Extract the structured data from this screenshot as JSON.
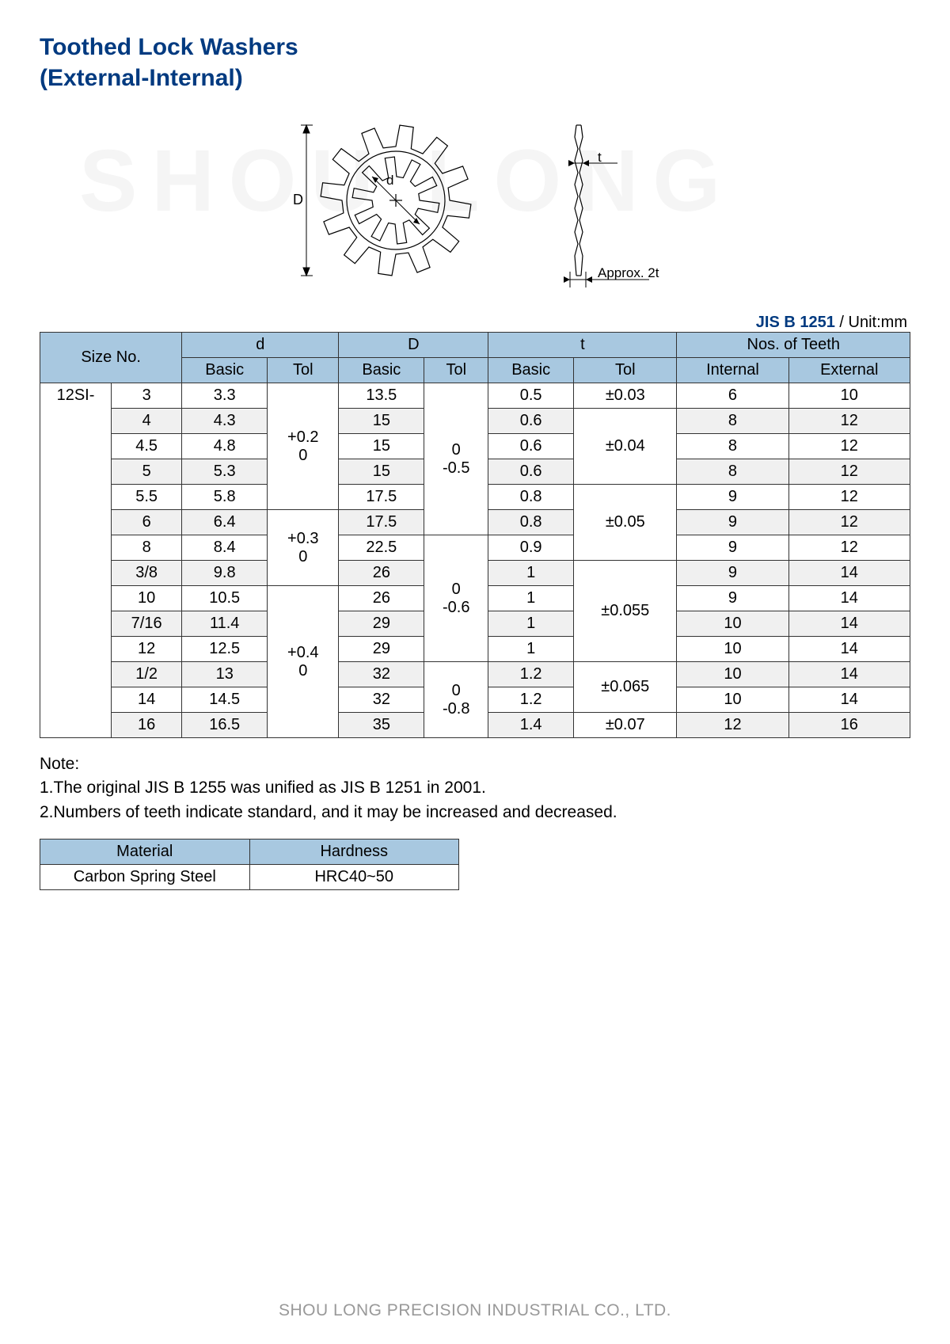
{
  "title_line1": "Toothed Lock Washers",
  "title_line2": "(External-Internal)",
  "watermark": "SHOU LONG",
  "diagram": {
    "label_D": "D",
    "label_d": "d",
    "label_t": "t",
    "label_approx": "Approx. 2t"
  },
  "standard": {
    "code": "JIS B 1251",
    "unit": " / Unit:mm"
  },
  "headers": {
    "size_no": "Size No.",
    "d": "d",
    "D": "D",
    "t": "t",
    "teeth": "Nos. of Teeth",
    "basic": "Basic",
    "tol": "Tol",
    "internal": "Internal",
    "external": "External"
  },
  "prefix": "12SI-",
  "rows": [
    {
      "size": "3",
      "d": "3.3",
      "D": "13.5",
      "t": "0.5",
      "ti": "6",
      "te": "10",
      "alt": false
    },
    {
      "size": "4",
      "d": "4.3",
      "D": "15",
      "t": "0.6",
      "ti": "8",
      "te": "12",
      "alt": true
    },
    {
      "size": "4.5",
      "d": "4.8",
      "D": "15",
      "t": "0.6",
      "ti": "8",
      "te": "12",
      "alt": false
    },
    {
      "size": "5",
      "d": "5.3",
      "D": "15",
      "t": "0.6",
      "ti": "8",
      "te": "12",
      "alt": true
    },
    {
      "size": "5.5",
      "d": "5.8",
      "D": "17.5",
      "t": "0.8",
      "ti": "9",
      "te": "12",
      "alt": false
    },
    {
      "size": "6",
      "d": "6.4",
      "D": "17.5",
      "t": "0.8",
      "ti": "9",
      "te": "12",
      "alt": true
    },
    {
      "size": "8",
      "d": "8.4",
      "D": "22.5",
      "t": "0.9",
      "ti": "9",
      "te": "12",
      "alt": false
    },
    {
      "size": "3/8",
      "d": "9.8",
      "D": "26",
      "t": "1",
      "ti": "9",
      "te": "14",
      "alt": true
    },
    {
      "size": "10",
      "d": "10.5",
      "D": "26",
      "t": "1",
      "ti": "9",
      "te": "14",
      "alt": false
    },
    {
      "size": "7/16",
      "d": "11.4",
      "D": "29",
      "t": "1",
      "ti": "10",
      "te": "14",
      "alt": true
    },
    {
      "size": "12",
      "d": "12.5",
      "D": "29",
      "t": "1",
      "ti": "10",
      "te": "14",
      "alt": false
    },
    {
      "size": "1/2",
      "d": "13",
      "D": "32",
      "t": "1.2",
      "ti": "10",
      "te": "14",
      "alt": true
    },
    {
      "size": "14",
      "d": "14.5",
      "D": "32",
      "t": "1.2",
      "ti": "10",
      "te": "14",
      "alt": false
    },
    {
      "size": "16",
      "d": "16.5",
      "D": "35",
      "t": "1.4",
      "ti": "12",
      "te": "16",
      "alt": true
    }
  ],
  "d_tol": [
    {
      "val1": "+0.2",
      "val2": "0",
      "span": 5
    },
    {
      "val1": "+0.3",
      "val2": "0",
      "span": 3
    },
    {
      "val1": "+0.4",
      "val2": "0",
      "span": 6
    }
  ],
  "D_tol": [
    {
      "val1": "0",
      "val2": "-0.5",
      "span": 6
    },
    {
      "val1": "0",
      "val2": "-0.6",
      "span": 5
    },
    {
      "val1": "0",
      "val2": "-0.8",
      "span": 3
    }
  ],
  "t_tol": [
    {
      "val": "±0.03",
      "span": 1
    },
    {
      "val": "±0.04",
      "span": 3
    },
    {
      "val": "±0.05",
      "span": 3
    },
    {
      "val": "±0.055",
      "span": 4
    },
    {
      "val": "±0.065",
      "span": 2
    },
    {
      "val": "±0.07",
      "span": 1
    }
  ],
  "note_title": "Note:",
  "note_1": "1.The original JIS B 1255 was unified as JIS B 1251 in 2001.",
  "note_2": "2.Numbers of teeth indicate standard, and it may be increased and decreased.",
  "material": {
    "h1": "Material",
    "h2": "Hardness",
    "v1": "Carbon Spring Steel",
    "v2": "HRC40~50"
  },
  "footer": "SHOU LONG PRECISION INDUSTRIAL CO., LTD."
}
